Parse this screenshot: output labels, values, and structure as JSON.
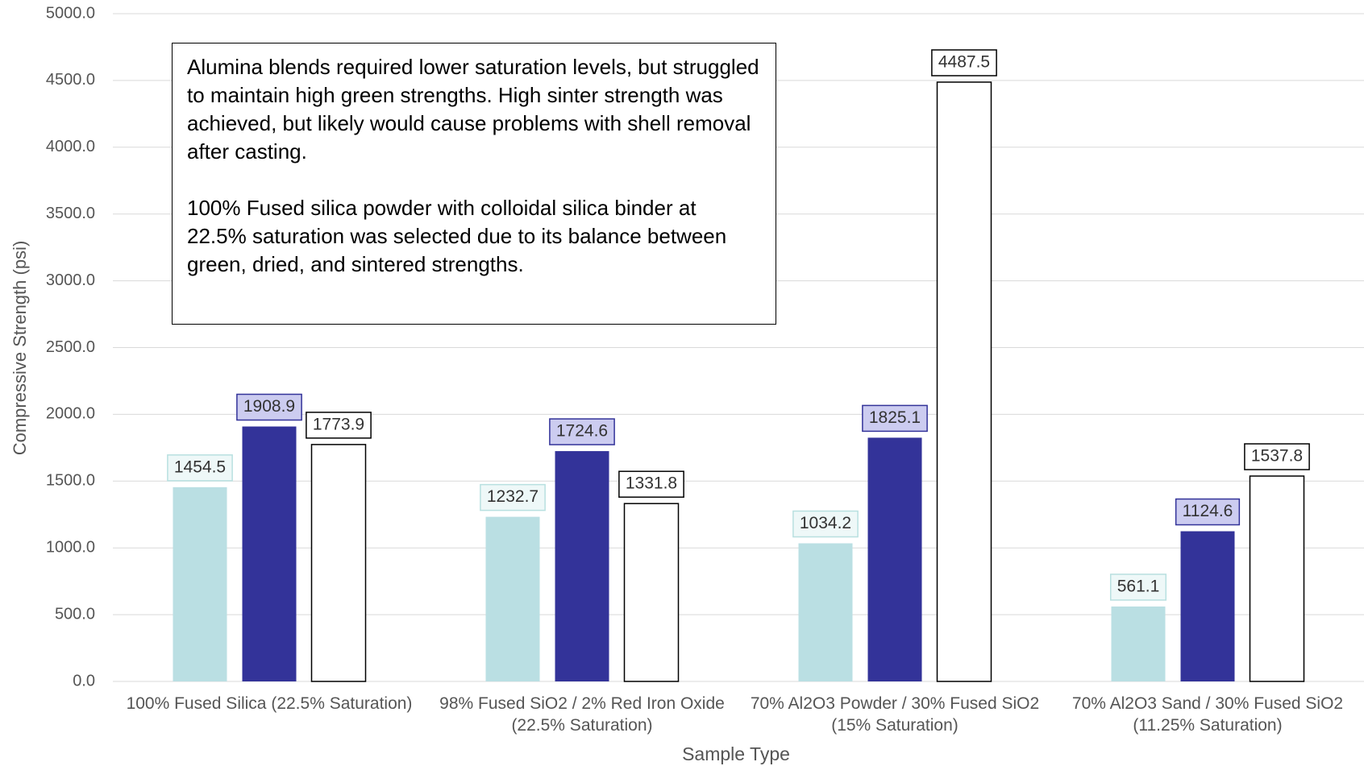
{
  "chart_data": {
    "type": "bar",
    "x_label": "Sample Type",
    "y_label": "Compressive Strength (psi)",
    "annotation": [
      "Alumina blends required lower saturation levels, but struggled to maintain high green strengths. High sinter strength was achieved, but likely would cause problems with shell removal after casting.",
      "100% Fused silica powder with colloidal silica binder at 22.5% saturation was selected due to its balance between green, dried, and sintered strengths."
    ],
    "categories": [
      "100% Fused Silica (22.5% Saturation)",
      "98% Fused SiO2 / 2% Red Iron Oxide (22.5% Saturation)",
      "70% Al2O3 Powder / 30% Fused SiO2 (15% Saturation)",
      "70% Al2O3 Sand / 30% Fused SiO2 (11.25% Saturation)"
    ],
    "series": [
      {
        "color": "#badfe3",
        "edge": "none",
        "label_fill": "#eef8f8",
        "label_stroke": "#b8e0e0",
        "values": [
          1454.5,
          1232.7,
          1034.2,
          561.1
        ]
      },
      {
        "color": "#333399",
        "edge": "none",
        "label_fill": "#ccccf0",
        "label_stroke": "#333399",
        "values": [
          1908.9,
          1724.6,
          1825.1,
          1124.6
        ]
      },
      {
        "color": "#ffffff",
        "edge": "#000000",
        "label_fill": "#ffffff",
        "label_stroke": "#000000",
        "values": [
          1773.9,
          1331.8,
          4487.5,
          1537.8
        ]
      }
    ],
    "ylim": [
      0,
      5000
    ],
    "yticks": [
      {
        "value": 0,
        "label": "0.0"
      },
      {
        "value": 500,
        "label": "500.0"
      },
      {
        "value": 1000,
        "label": "1000.0"
      },
      {
        "value": 1500,
        "label": "1500.0"
      },
      {
        "value": 2000,
        "label": "2000.0"
      },
      {
        "value": 2500,
        "label": "2500.0"
      },
      {
        "value": 3000,
        "label": "3000.0"
      },
      {
        "value": 3500,
        "label": "3500.0"
      },
      {
        "value": 4000,
        "label": "4000.0"
      },
      {
        "value": 4500,
        "label": "4500.0"
      },
      {
        "value": 5000,
        "label": "5000.0"
      }
    ],
    "grid": true
  }
}
